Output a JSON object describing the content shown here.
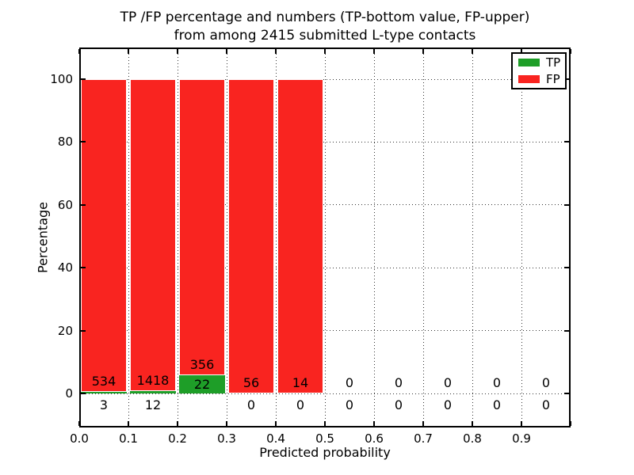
{
  "chart_data": {
    "type": "bar",
    "variant": "stacked-percentage-histogram",
    "title_line1": "TP /FP percentage and numbers (TP-bottom value, FP-upper)",
    "title_line2": "from among 2415 submitted L-type contacts",
    "xlabel": "Predicted probability",
    "ylabel": "Percentage",
    "total_submitted": 2415,
    "bin_width": 0.1,
    "x_bin_starts": [
      0.0,
      0.1,
      0.2,
      0.3,
      0.4,
      0.5,
      0.6,
      0.7,
      0.8,
      0.9
    ],
    "series": [
      {
        "name": "TP",
        "color": "#1e9e28",
        "counts": [
          3,
          12,
          22,
          0,
          0,
          0,
          0,
          0,
          0,
          0
        ]
      },
      {
        "name": "FP",
        "color": "#f92420",
        "counts": [
          534,
          1418,
          356,
          56,
          14,
          0,
          0,
          0,
          0,
          0
        ]
      }
    ],
    "percent_stacked": true,
    "xtick_labels": [
      "0.0",
      "0.1",
      "0.2",
      "0.3",
      "0.4",
      "0.5",
      "0.6",
      "0.7",
      "0.8",
      "0.9"
    ],
    "ytick_values": [
      0,
      20,
      40,
      60,
      80,
      100
    ],
    "ytick_labels": [
      "0",
      "20",
      "40",
      "60",
      "80",
      "100"
    ],
    "xlim": [
      0.0,
      1.0
    ],
    "ylim": [
      -11,
      110
    ],
    "grid": {
      "style": "dotted",
      "color": "#333333"
    },
    "legend": {
      "position": "upper-right",
      "entries": [
        "TP",
        "FP"
      ]
    }
  }
}
